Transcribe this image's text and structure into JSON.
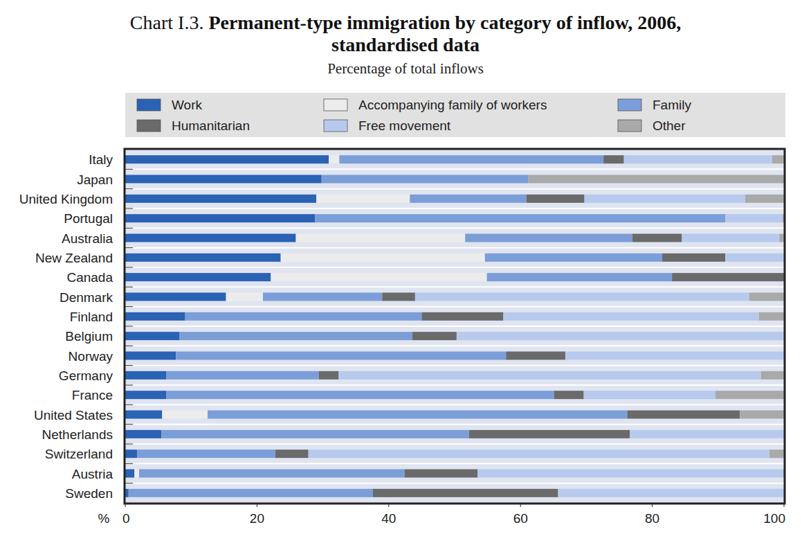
{
  "chart_data": {
    "type": "bar",
    "orientation": "horizontal",
    "stacked": true,
    "grid": false,
    "legend": "top",
    "chart_label": "Chart I.3.",
    "title": "Permanent-type immigration by category of inflow, 2006, standardised data",
    "subtitle": "Percentage of total inflows",
    "xlabel": "%",
    "xlim": [
      0,
      100
    ],
    "xticks": [
      0,
      20,
      40,
      60,
      80,
      100
    ],
    "categories": [
      "Italy",
      "Japan",
      "United Kingdom",
      "Portugal",
      "Australia",
      "New Zealand",
      "Canada",
      "Denmark",
      "Finland",
      "Belgium",
      "Norway",
      "Germany",
      "France",
      "United States",
      "Netherlands",
      "Switzerland",
      "Austria",
      "Sweden"
    ],
    "series": [
      {
        "name": "Work",
        "color": "#2a62b4",
        "values": [
          30.9,
          29.8,
          29.0,
          28.8,
          25.9,
          23.6,
          22.1,
          15.3,
          9.1,
          8.2,
          7.7,
          6.2,
          6.2,
          5.6,
          5.5,
          1.8,
          1.4,
          0.5
        ]
      },
      {
        "name": "Accompanying family of workers",
        "color": "#ececec",
        "values": [
          1.6,
          0,
          14.2,
          0,
          25.7,
          31.0,
          32.8,
          5.6,
          0,
          0,
          0,
          0,
          0,
          6.9,
          0,
          0,
          0.7,
          0
        ]
      },
      {
        "name": "Family",
        "color": "#7b9ed8",
        "values": [
          40.1,
          31.4,
          17.7,
          62.3,
          25.4,
          26.9,
          28.1,
          18.1,
          35.9,
          35.4,
          50.1,
          23.2,
          58.9,
          63.7,
          46.7,
          21.0,
          40.3,
          37.1
        ]
      },
      {
        "name": "Humanitarian",
        "color": "#6a6a6a",
        "values": [
          3.1,
          0,
          8.8,
          0,
          7.5,
          9.6,
          17.0,
          5.0,
          12.4,
          6.7,
          9.0,
          3.0,
          4.5,
          17.1,
          24.4,
          5.0,
          11.1,
          28.1
        ]
      },
      {
        "name": "Free movement",
        "color": "#b7caed",
        "values": [
          22.5,
          0,
          24.4,
          8.7,
          14.8,
          8.9,
          0,
          50.7,
          38.8,
          49.7,
          33.2,
          64.1,
          20.0,
          0,
          23.4,
          70.0,
          46.4,
          34.3
        ]
      },
      {
        "name": "Other",
        "color": "#a9a9a9",
        "values": [
          1.8,
          38.8,
          5.9,
          0.2,
          0.7,
          0,
          0,
          5.3,
          3.8,
          0,
          0,
          3.5,
          10.4,
          6.7,
          0,
          2.2,
          0.1,
          0
        ]
      }
    ]
  }
}
